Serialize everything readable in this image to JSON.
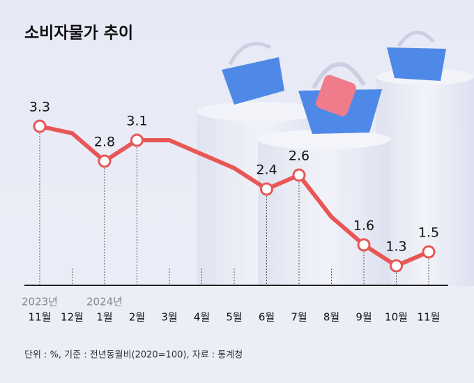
{
  "chart_data": {
    "type": "line",
    "title": "소비자물가 추이",
    "categories": [
      "11월",
      "12월",
      "1월",
      "2월",
      "3월",
      "4월",
      "5월",
      "6월",
      "7월",
      "8월",
      "9월",
      "10월",
      "11월"
    ],
    "year_labels": [
      "2023년",
      null,
      "2024년",
      null,
      null,
      null,
      null,
      null,
      null,
      null,
      null,
      null,
      null
    ],
    "values": [
      3.3,
      3.2,
      2.8,
      3.1,
      3.1,
      2.9,
      2.7,
      2.4,
      2.6,
      2.0,
      1.6,
      1.3,
      1.5
    ],
    "value_labels": [
      "3.3",
      null,
      "2.8",
      "3.1",
      null,
      null,
      null,
      "2.4",
      "2.6",
      null,
      "1.6",
      "1.3",
      "1.5"
    ],
    "color": "#e85656",
    "note": "단위 : %, 기준 : 전년동월비(2020=100), 자료 : 통계청"
  }
}
